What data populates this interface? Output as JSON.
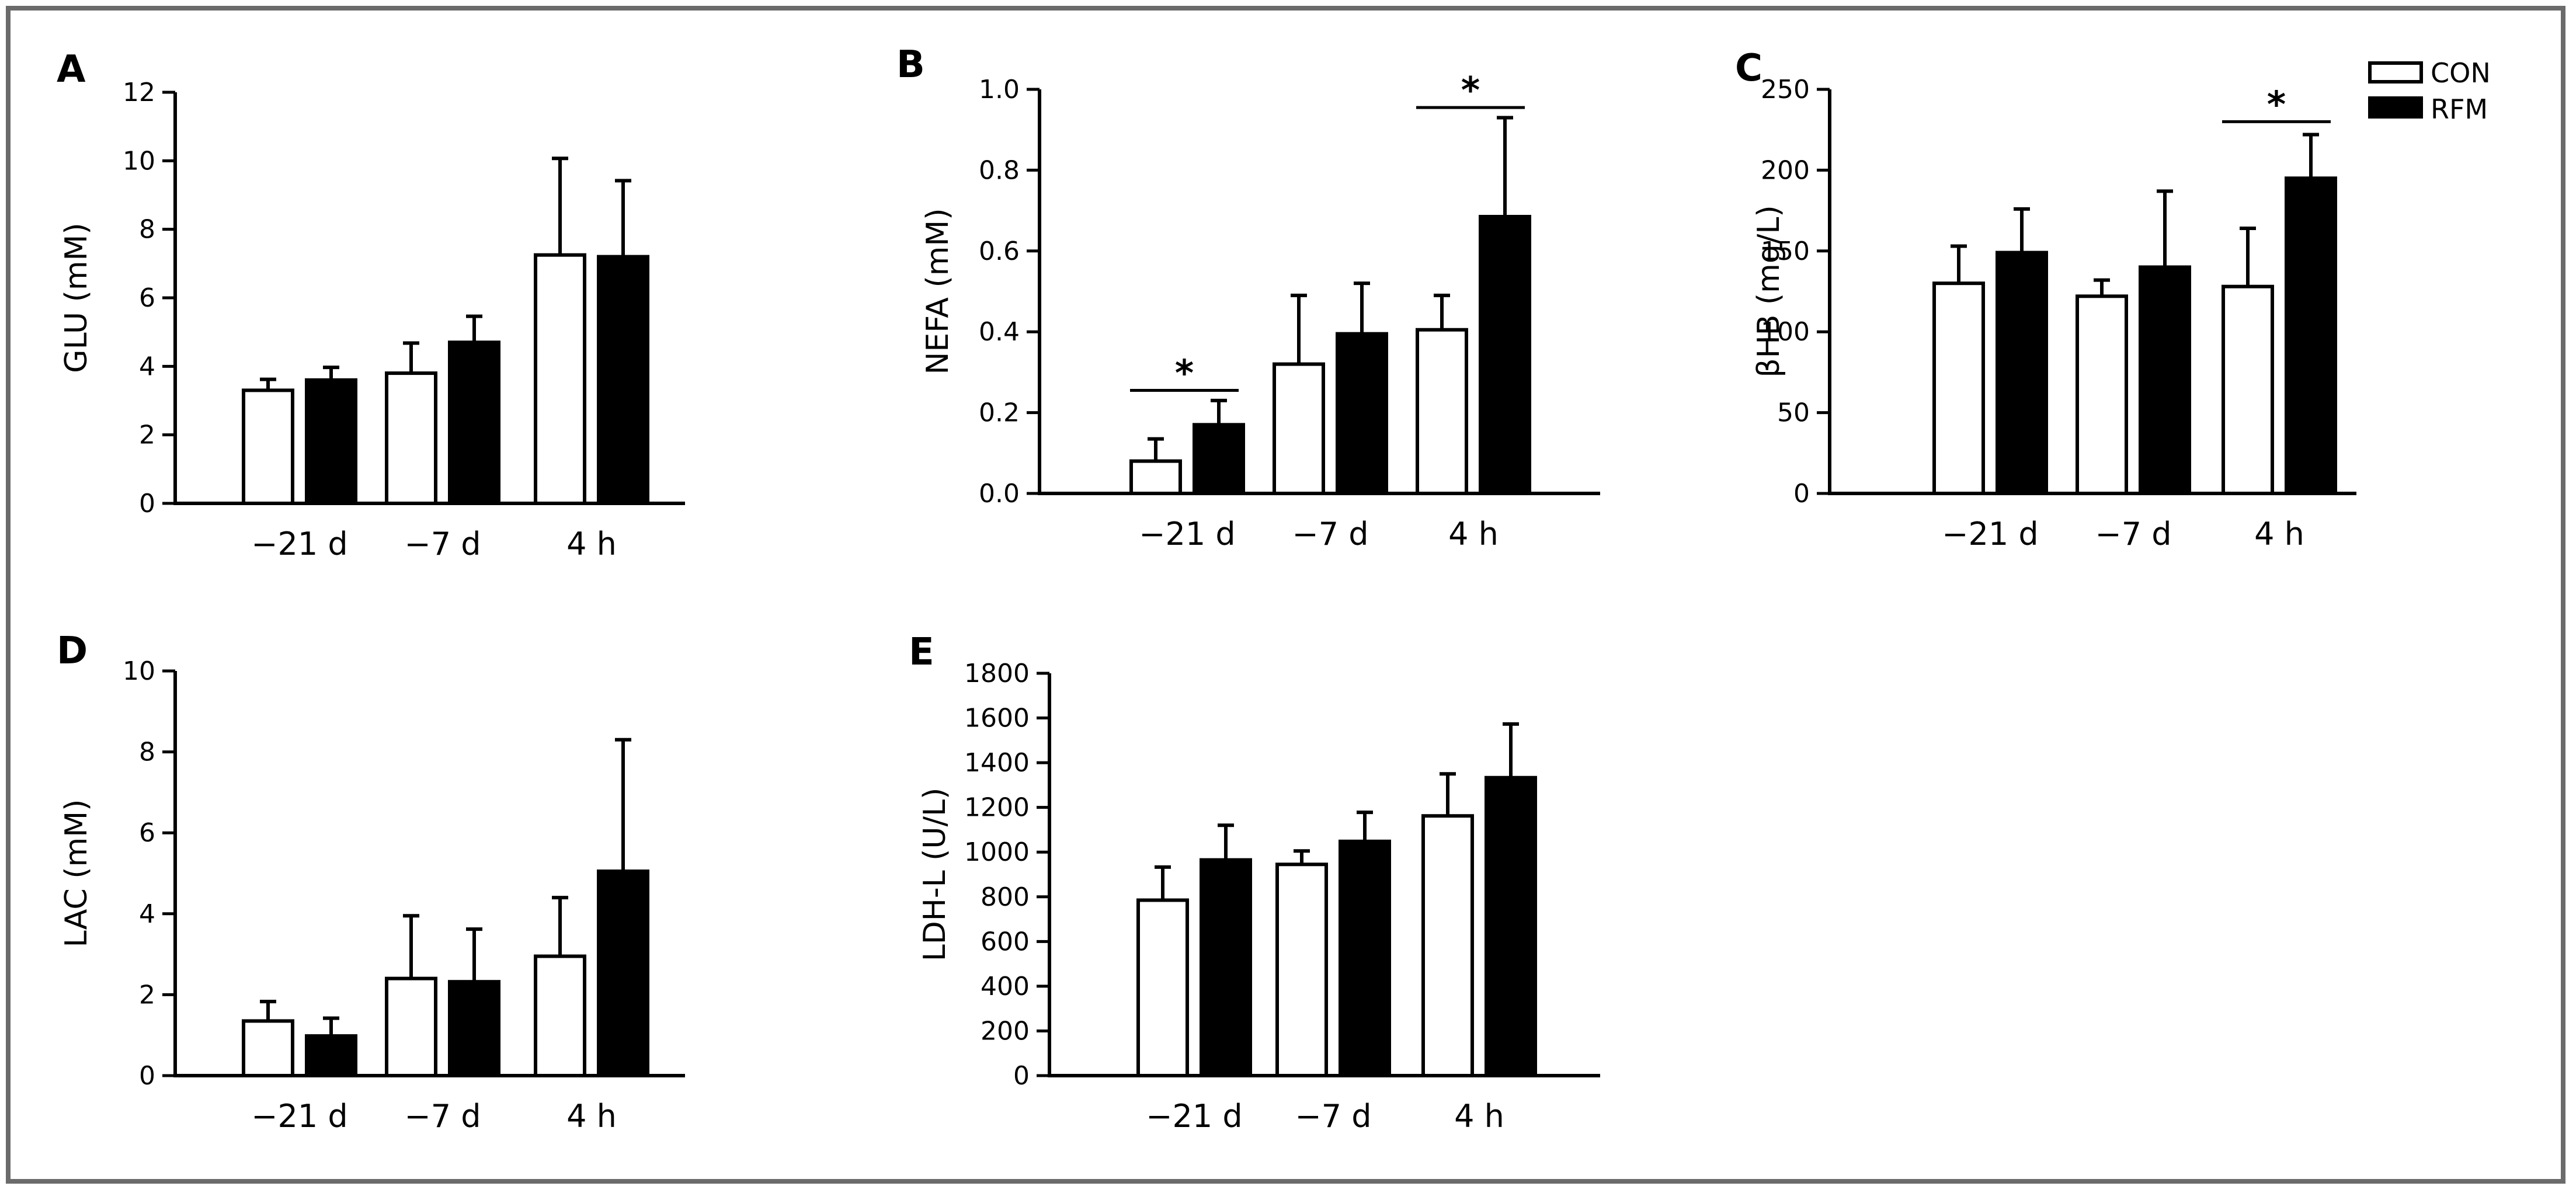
{
  "colors": {
    "con_fill": "#ffffff",
    "rfm_fill": "#000000",
    "frame": "#6b6b6b"
  },
  "legend": {
    "items": [
      {
        "label": "CON",
        "series": "CON"
      },
      {
        "label": "RFM",
        "series": "RFM"
      }
    ]
  },
  "chart_data": [
    {
      "panel": "A",
      "type": "bar",
      "title": "",
      "xlabel": "",
      "ylabel": "GLU (mM)",
      "ylim": [
        0,
        12
      ],
      "yticks": [
        "0",
        "2",
        "4",
        "6",
        "8",
        "10",
        "12"
      ],
      "categories": [
        "−21 d",
        "−7 d",
        "4 h"
      ],
      "series": [
        {
          "name": "CON",
          "values": [
            3.3,
            3.8,
            7.25
          ],
          "errors": [
            0.32,
            0.88,
            2.82
          ]
        },
        {
          "name": "RFM",
          "values": [
            3.6,
            4.7,
            7.2
          ],
          "errors": [
            0.37,
            0.76,
            2.22
          ]
        }
      ],
      "significance": []
    },
    {
      "panel": "B",
      "type": "bar",
      "title": "",
      "xlabel": "",
      "ylabel": "NEFA (mM)",
      "ylim": [
        0,
        1.0
      ],
      "yticks": [
        "0.0",
        "0.2",
        "0.4",
        "0.6",
        "0.8",
        "1.0"
      ],
      "categories": [
        "−21 d",
        "−7 d",
        "4 h"
      ],
      "series": [
        {
          "name": "CON",
          "values": [
            0.08,
            0.32,
            0.405
          ],
          "errors": [
            0.055,
            0.17,
            0.085
          ]
        },
        {
          "name": "RFM",
          "values": [
            0.17,
            0.395,
            0.685
          ],
          "errors": [
            0.06,
            0.125,
            0.245
          ]
        }
      ],
      "significance": [
        {
          "category": 0,
          "label": "*",
          "level": 0.255
        },
        {
          "category": 2,
          "label": "*",
          "level": 0.955
        }
      ]
    },
    {
      "panel": "C",
      "type": "bar",
      "title": "",
      "xlabel": "",
      "ylabel": "βHB (mg/L)",
      "ylim": [
        0,
        250
      ],
      "yticks": [
        "0",
        "50",
        "100",
        "150",
        "200",
        "250"
      ],
      "categories": [
        "−21 d",
        "−7 d",
        "4 h"
      ],
      "series": [
        {
          "name": "CON",
          "values": [
            130,
            122,
            128
          ],
          "errors": [
            23,
            10,
            36
          ]
        },
        {
          "name": "RFM",
          "values": [
            149,
            140,
            195
          ],
          "errors": [
            27,
            47,
            27
          ]
        }
      ],
      "significance": [
        {
          "category": 2,
          "label": "*",
          "level": 230
        }
      ]
    },
    {
      "panel": "D",
      "type": "bar",
      "title": "",
      "xlabel": "",
      "ylabel": "LAC (mM)",
      "ylim": [
        0,
        10
      ],
      "yticks": [
        "0",
        "2",
        "4",
        "6",
        "8",
        "10"
      ],
      "categories": [
        "−21 d",
        "−7 d",
        "4 h"
      ],
      "series": [
        {
          "name": "CON",
          "values": [
            1.35,
            2.4,
            2.95
          ],
          "errors": [
            0.48,
            1.55,
            1.45
          ]
        },
        {
          "name": "RFM",
          "values": [
            0.98,
            2.32,
            5.05
          ],
          "errors": [
            0.44,
            1.3,
            3.25
          ]
        }
      ],
      "significance": []
    },
    {
      "panel": "E",
      "type": "bar",
      "title": "",
      "xlabel": "",
      "ylabel": "LDH-L (U/L)",
      "ylim": [
        0,
        1800
      ],
      "yticks": [
        "0",
        "200",
        "400",
        "600",
        "800",
        "1000",
        "1200",
        "1400",
        "1600",
        "1800"
      ],
      "categories": [
        "−21 d",
        "−7 d",
        "4 h"
      ],
      "series": [
        {
          "name": "CON",
          "values": [
            785,
            945,
            1162
          ],
          "errors": [
            148,
            60,
            188
          ]
        },
        {
          "name": "RFM",
          "values": [
            965,
            1048,
            1333
          ],
          "errors": [
            155,
            130,
            240
          ]
        }
      ],
      "significance": []
    }
  ]
}
